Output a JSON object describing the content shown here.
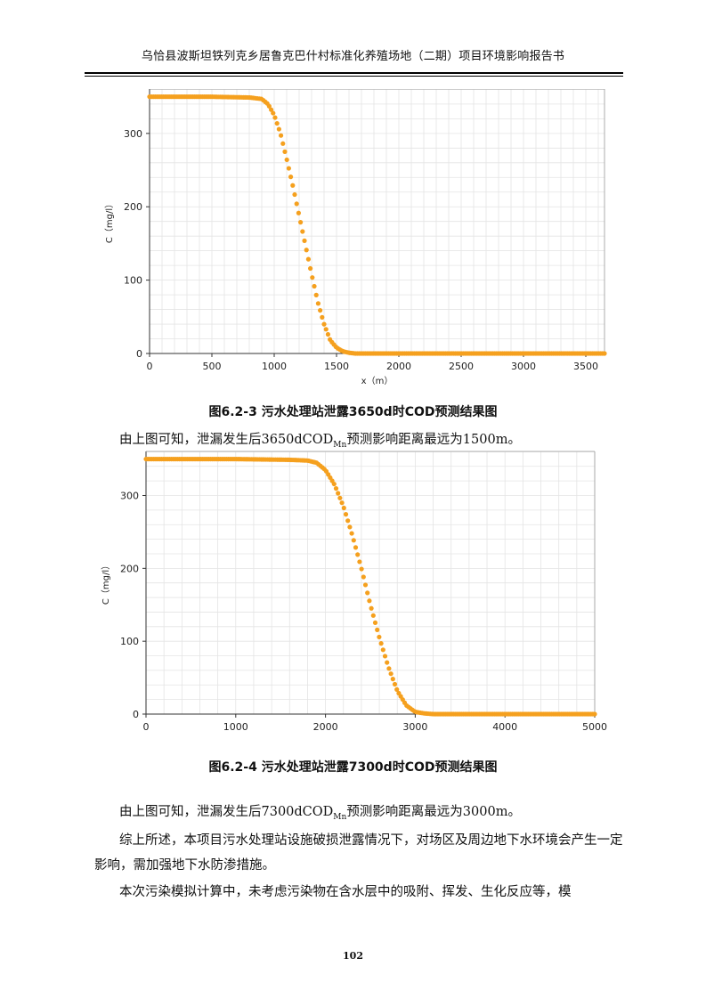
{
  "header": {
    "title": "乌恰县波斯坦铁列克乡居鲁克巴什村标准化养殖场地（二期）项目环境影响报告书"
  },
  "figure1": {
    "caption": "图6.2-3  污水处理站泄露3650d时COD预测结果图",
    "sentence_pre": "由上图可知，泄漏发生后3650dCOD",
    "sentence_sub": "Mn",
    "sentence_post": "预测影响距离最远为1500m。"
  },
  "figure2": {
    "caption": "图6.2-4  污水处理站泄露7300d时COD预测结果图",
    "sentence_pre": "由上图可知，泄漏发生后7300dCOD",
    "sentence_sub": "Mn",
    "sentence_post": "预测影响距离最远为3000m。"
  },
  "body": {
    "para1": "综上所述，本项目污水处理站设施破损泄露情况下，对场区及周边地下水环境会产生一定影响，需加强地下水防渗措施。",
    "para2": "本次污染模拟计算中，未考虑污染物在含水层中的吸附、挥发、生化反应等，模"
  },
  "page_number": "102",
  "chart_data": [
    {
      "type": "scatter",
      "title": "",
      "xlabel": "x（m）",
      "ylabel": "C（mg/l）",
      "xlim": [
        0,
        3650
      ],
      "ylim": [
        0,
        350
      ],
      "xticks": [
        0,
        500,
        1000,
        1500,
        2000,
        2500,
        3000,
        3500
      ],
      "yticks": [
        0,
        100,
        200,
        300
      ],
      "grid": true,
      "color": "#F5A01E",
      "series": [
        {
          "x": [
            0,
            500,
            800,
            900,
            950,
            1000,
            1050,
            1100,
            1150,
            1200,
            1250,
            1300,
            1350,
            1400,
            1450,
            1500,
            1550,
            1600,
            1650,
            1700,
            2000,
            2500,
            3000,
            3650
          ],
          "values": [
            350,
            350,
            349,
            347,
            340,
            325,
            300,
            265,
            228,
            188,
            148,
            108,
            70,
            40,
            18,
            8,
            3,
            1,
            0,
            0,
            0,
            0,
            0,
            0
          ]
        }
      ]
    },
    {
      "type": "scatter",
      "title": "",
      "xlabel": "",
      "ylabel": "C（mg/l）",
      "xlim": [
        0,
        5000
      ],
      "ylim": [
        0,
        350
      ],
      "xticks": [
        0,
        1000,
        2000,
        3000,
        4000,
        5000
      ],
      "yticks": [
        0,
        100,
        200,
        300
      ],
      "grid": true,
      "color": "#F5A01E",
      "series": [
        {
          "x": [
            0,
            1000,
            1600,
            1800,
            1900,
            2000,
            2100,
            2200,
            2300,
            2400,
            2500,
            2600,
            2700,
            2800,
            2900,
            3000,
            3100,
            3200,
            3500,
            4000,
            4500,
            5000
          ],
          "values": [
            350,
            350,
            349,
            348,
            345,
            335,
            315,
            285,
            245,
            200,
            150,
            105,
            65,
            32,
            12,
            3,
            1,
            0,
            0,
            0,
            0,
            0
          ]
        }
      ]
    }
  ]
}
